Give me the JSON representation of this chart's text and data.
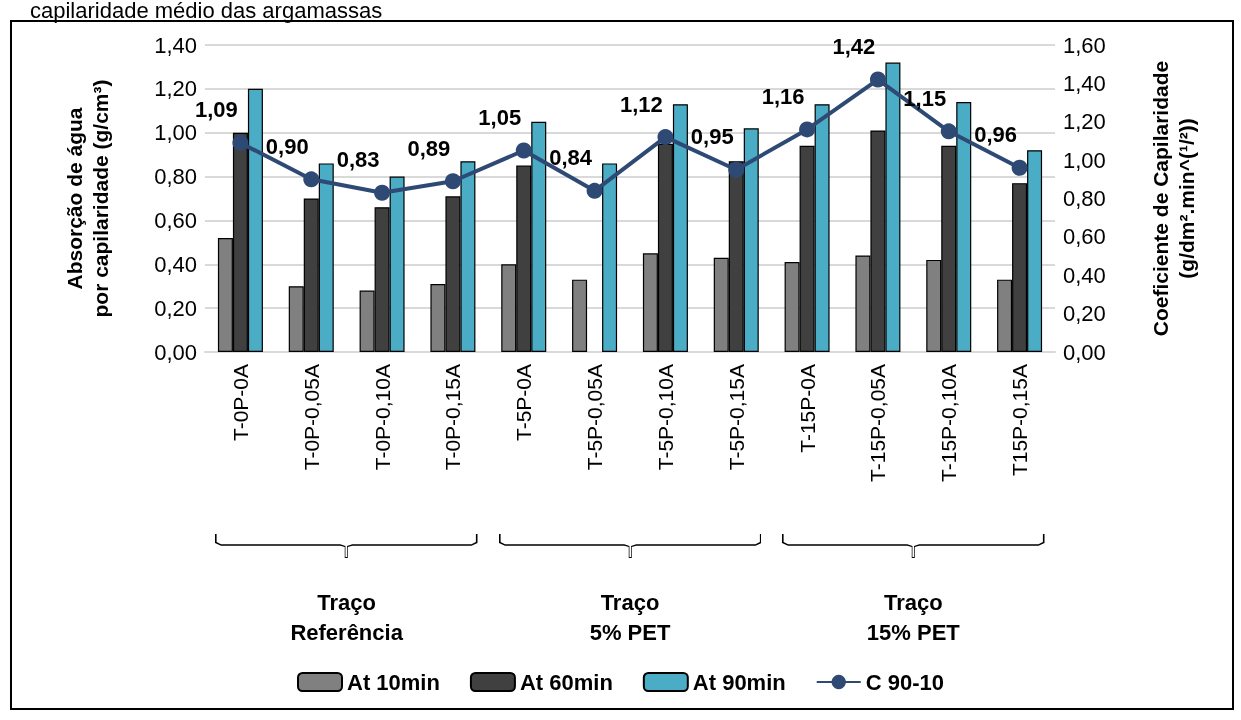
{
  "chart_data": {
    "type": "bar",
    "title": "capilaridade médio das argamassas",
    "categories": [
      "T-0P-0A",
      "T-0P-0,05A",
      "T-0P-0,10A",
      "T-0P-0,15A",
      "T-5P-0A",
      "T-5P-0,05A",
      "T-5P-0,10A",
      "T-5P-0,15A",
      "T-15P-0A",
      "T-15P-0,05A",
      "T-15P-0,10A",
      "T15P-0,15A"
    ],
    "series": [
      {
        "name": "At 10min",
        "color": "#808080",
        "values": [
          0.52,
          0.3,
          0.28,
          0.31,
          0.4,
          0.33,
          0.45,
          0.43,
          0.41,
          0.44,
          0.42,
          0.33
        ]
      },
      {
        "name": "At 60min",
        "color": "#404040",
        "values": [
          1.0,
          0.7,
          0.66,
          0.71,
          0.85,
          null,
          0.95,
          0.87,
          0.94,
          1.01,
          0.94,
          0.77
        ]
      },
      {
        "name": "At 90min",
        "color": "#4bacc6",
        "values": [
          1.2,
          0.86,
          0.8,
          0.87,
          1.05,
          0.86,
          1.13,
          1.02,
          1.13,
          1.32,
          1.14,
          0.92
        ]
      },
      {
        "name": "C 90-10",
        "type": "line",
        "axis": "y2",
        "color": "#2e4a74",
        "marker": "circle",
        "values": [
          1.09,
          0.9,
          0.83,
          0.89,
          1.05,
          0.84,
          1.12,
          0.95,
          1.16,
          1.42,
          1.15,
          0.96
        ],
        "value_labels": [
          "1,09",
          "0,90",
          "0,83",
          "0,89",
          "1,05",
          "0,84",
          "1,12",
          "0,95",
          "1,16",
          "1,42",
          "1,15",
          "0,96"
        ]
      }
    ],
    "ylabel": "Absorção de água\npor capilaridade (g/cm³)",
    "y2label": "Coeficiente de Capilaridade\n(g/dm².min^(¹/²))",
    "ylim": [
      0,
      1.4
    ],
    "yticks": [
      {
        "value": 0,
        "label": "0,00"
      },
      {
        "value": 0.2,
        "label": "0,20"
      },
      {
        "value": 0.4,
        "label": "0,40"
      },
      {
        "value": 0.6,
        "label": "0,60"
      },
      {
        "value": 0.8,
        "label": "0,80"
      },
      {
        "value": 1.0,
        "label": "1,00"
      },
      {
        "value": 1.2,
        "label": "1,20"
      },
      {
        "value": 1.4,
        "label": "1,40"
      }
    ],
    "y2lim": [
      0,
      1.6
    ],
    "y2ticks": [
      {
        "value": 0,
        "label": "0,00"
      },
      {
        "value": 0.2,
        "label": "0,20"
      },
      {
        "value": 0.4,
        "label": "0,40"
      },
      {
        "value": 0.6,
        "label": "0,60"
      },
      {
        "value": 0.8,
        "label": "0,80"
      },
      {
        "value": 1.0,
        "label": "1,00"
      },
      {
        "value": 1.2,
        "label": "1,20"
      },
      {
        "value": 1.4,
        "label": "1,40"
      },
      {
        "value": 1.6,
        "label": "1,60"
      }
    ],
    "annotations": [
      "Traço\nReferência",
      "Traço\n5% PET",
      "Traço\n15% PET"
    ],
    "grid": "y",
    "legend": "bottom"
  }
}
